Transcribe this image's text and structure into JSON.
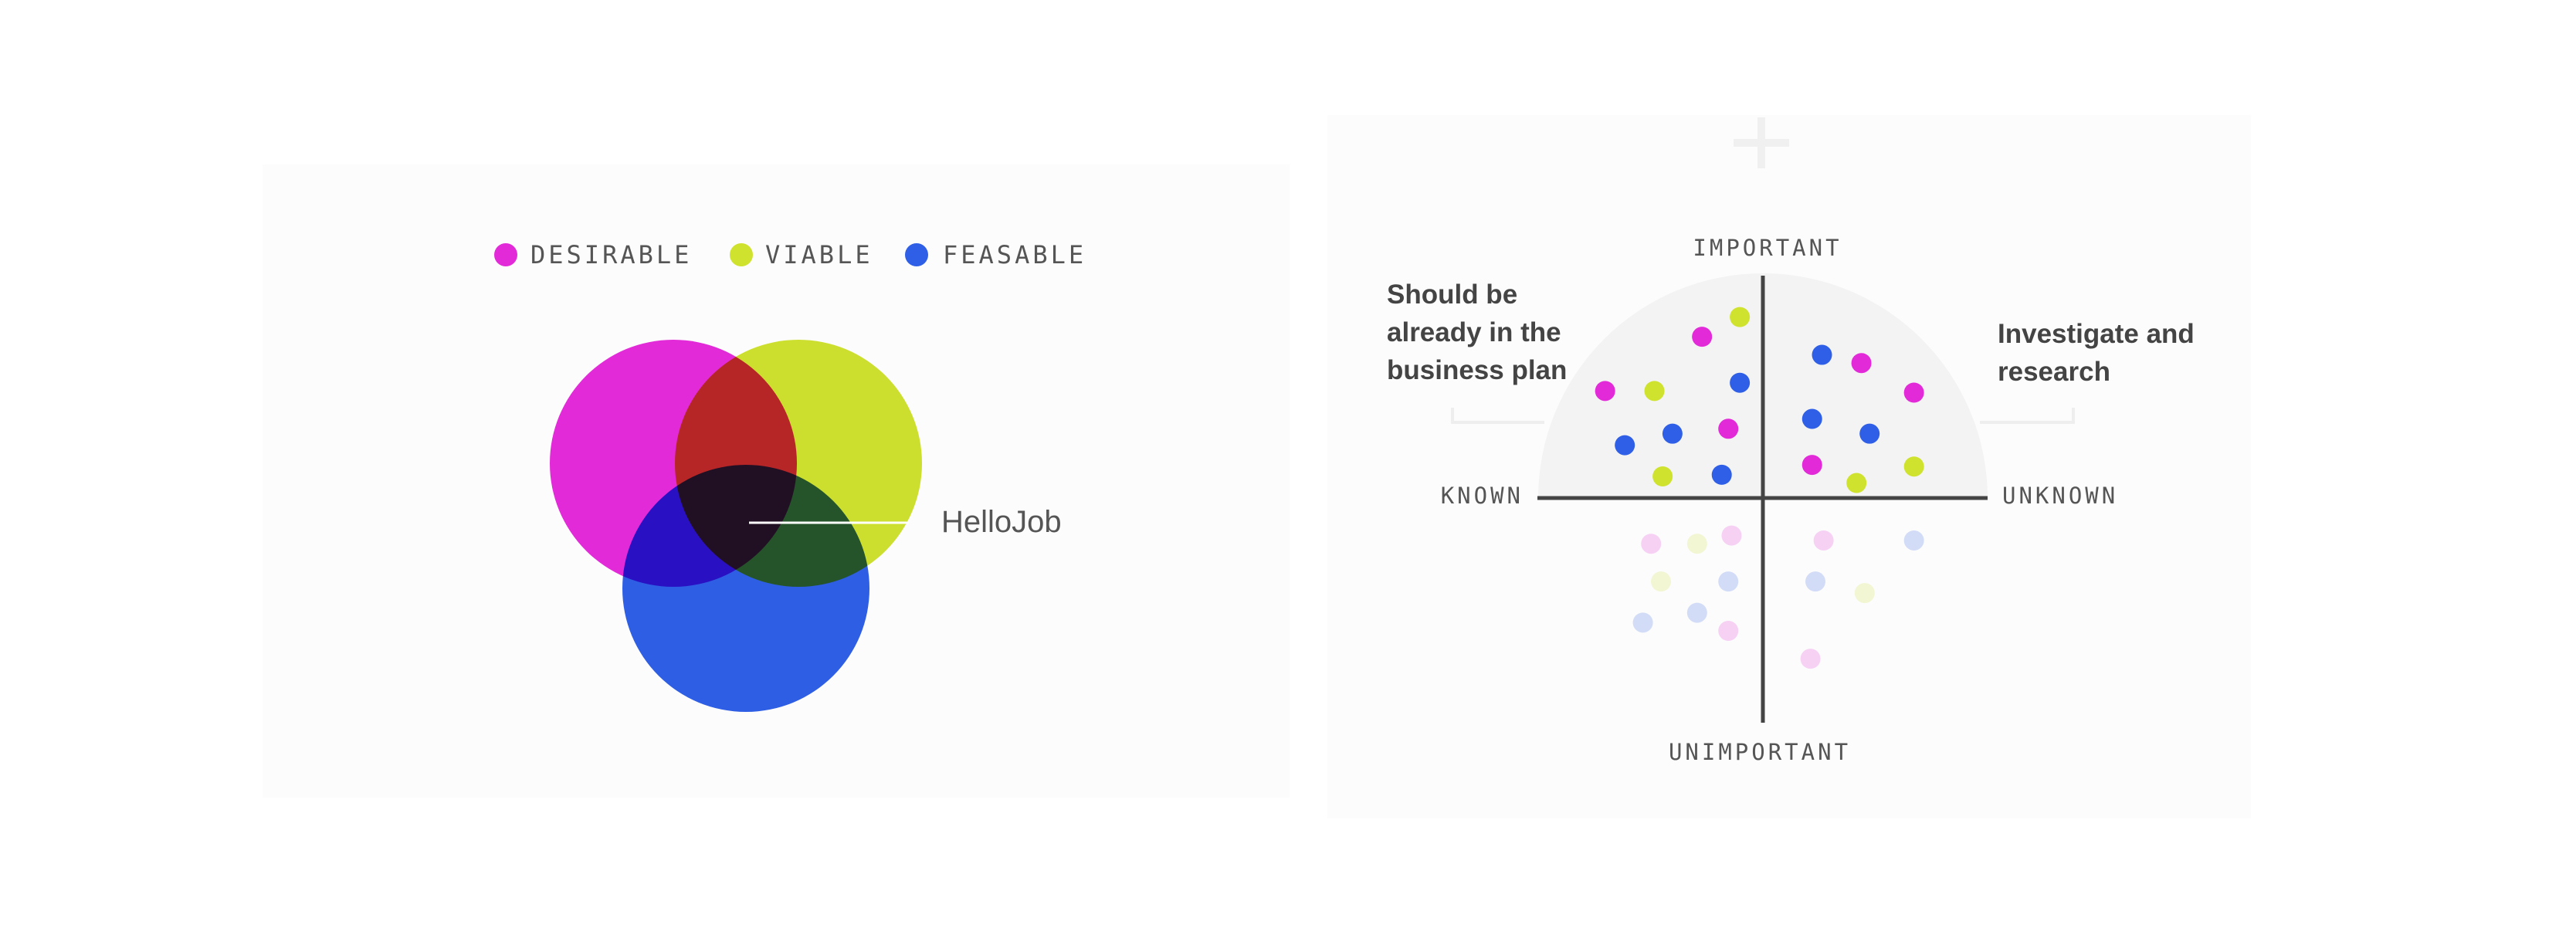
{
  "venn": {
    "legend": [
      "DESIRABLE",
      "VIABLE",
      "FEASABLE"
    ],
    "label": "HelloJob"
  },
  "matrix": {
    "axes": {
      "top": "IMPORTANT",
      "left": "KNOWN",
      "right": "UNKNOWN",
      "bottom": "UNIMPORTANT"
    },
    "quadrants": [
      {
        "lines": [
          "Should be",
          "already in the",
          "business plan"
        ]
      },
      {
        "lines": [
          "Investigate and",
          "research"
        ]
      }
    ]
  }
}
